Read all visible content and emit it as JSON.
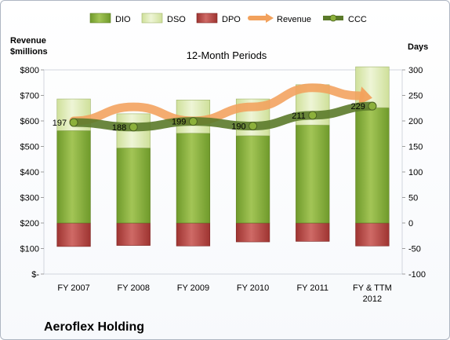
{
  "chart_data": {
    "type": "bar",
    "title": "12-Month Periods",
    "company": "Aeroflex Holding",
    "categories": [
      "FY 2007",
      "FY 2008",
      "FY 2009",
      "FY 2010",
      "FY 2011",
      "FY & TTM 2012"
    ],
    "left_axis": {
      "label_line1": "Revenue",
      "label_line2": "$millions",
      "range": [
        0,
        800
      ],
      "ticks": [
        "$-",
        "$100",
        "$200",
        "$300",
        "$400",
        "$500",
        "$600",
        "$700",
        "$800"
      ]
    },
    "right_axis": {
      "label": "Days",
      "range": [
        -100,
        300
      ],
      "ticks": [
        "-100",
        "-50",
        "0",
        "50",
        "100",
        "150",
        "200",
        "250",
        "300"
      ]
    },
    "legend": [
      "DIO",
      "DSO",
      "DPO",
      "Revenue",
      "CCC"
    ],
    "series": [
      {
        "name": "DIO",
        "axis": "days",
        "values": [
          181,
          147,
          176,
          171,
          192,
          226
        ]
      },
      {
        "name": "DSO",
        "axis": "days",
        "values": [
          62,
          67,
          65,
          72,
          79,
          80
        ]
      },
      {
        "name": "DPO",
        "axis": "days",
        "values": [
          -46,
          -44,
          -45,
          -37,
          -36,
          -45
        ]
      },
      {
        "name": "Revenue",
        "axis": "revenue",
        "values": [
          600,
          655,
          600,
          655,
          730,
          690
        ]
      },
      {
        "name": "CCC",
        "axis": "days",
        "values": [
          197,
          188,
          199,
          190,
          211,
          229
        ]
      }
    ],
    "ccc_labels": [
      "197",
      "188",
      "199",
      "190",
      "211",
      "229"
    ],
    "colors": {
      "DIO": "#8cb03b",
      "DSO": "#dfecb9",
      "DPO": "#b84a48",
      "Revenue": "#f2a15c",
      "CCC": "#5b7a2a"
    },
    "grid": false,
    "legend_position": "top"
  }
}
